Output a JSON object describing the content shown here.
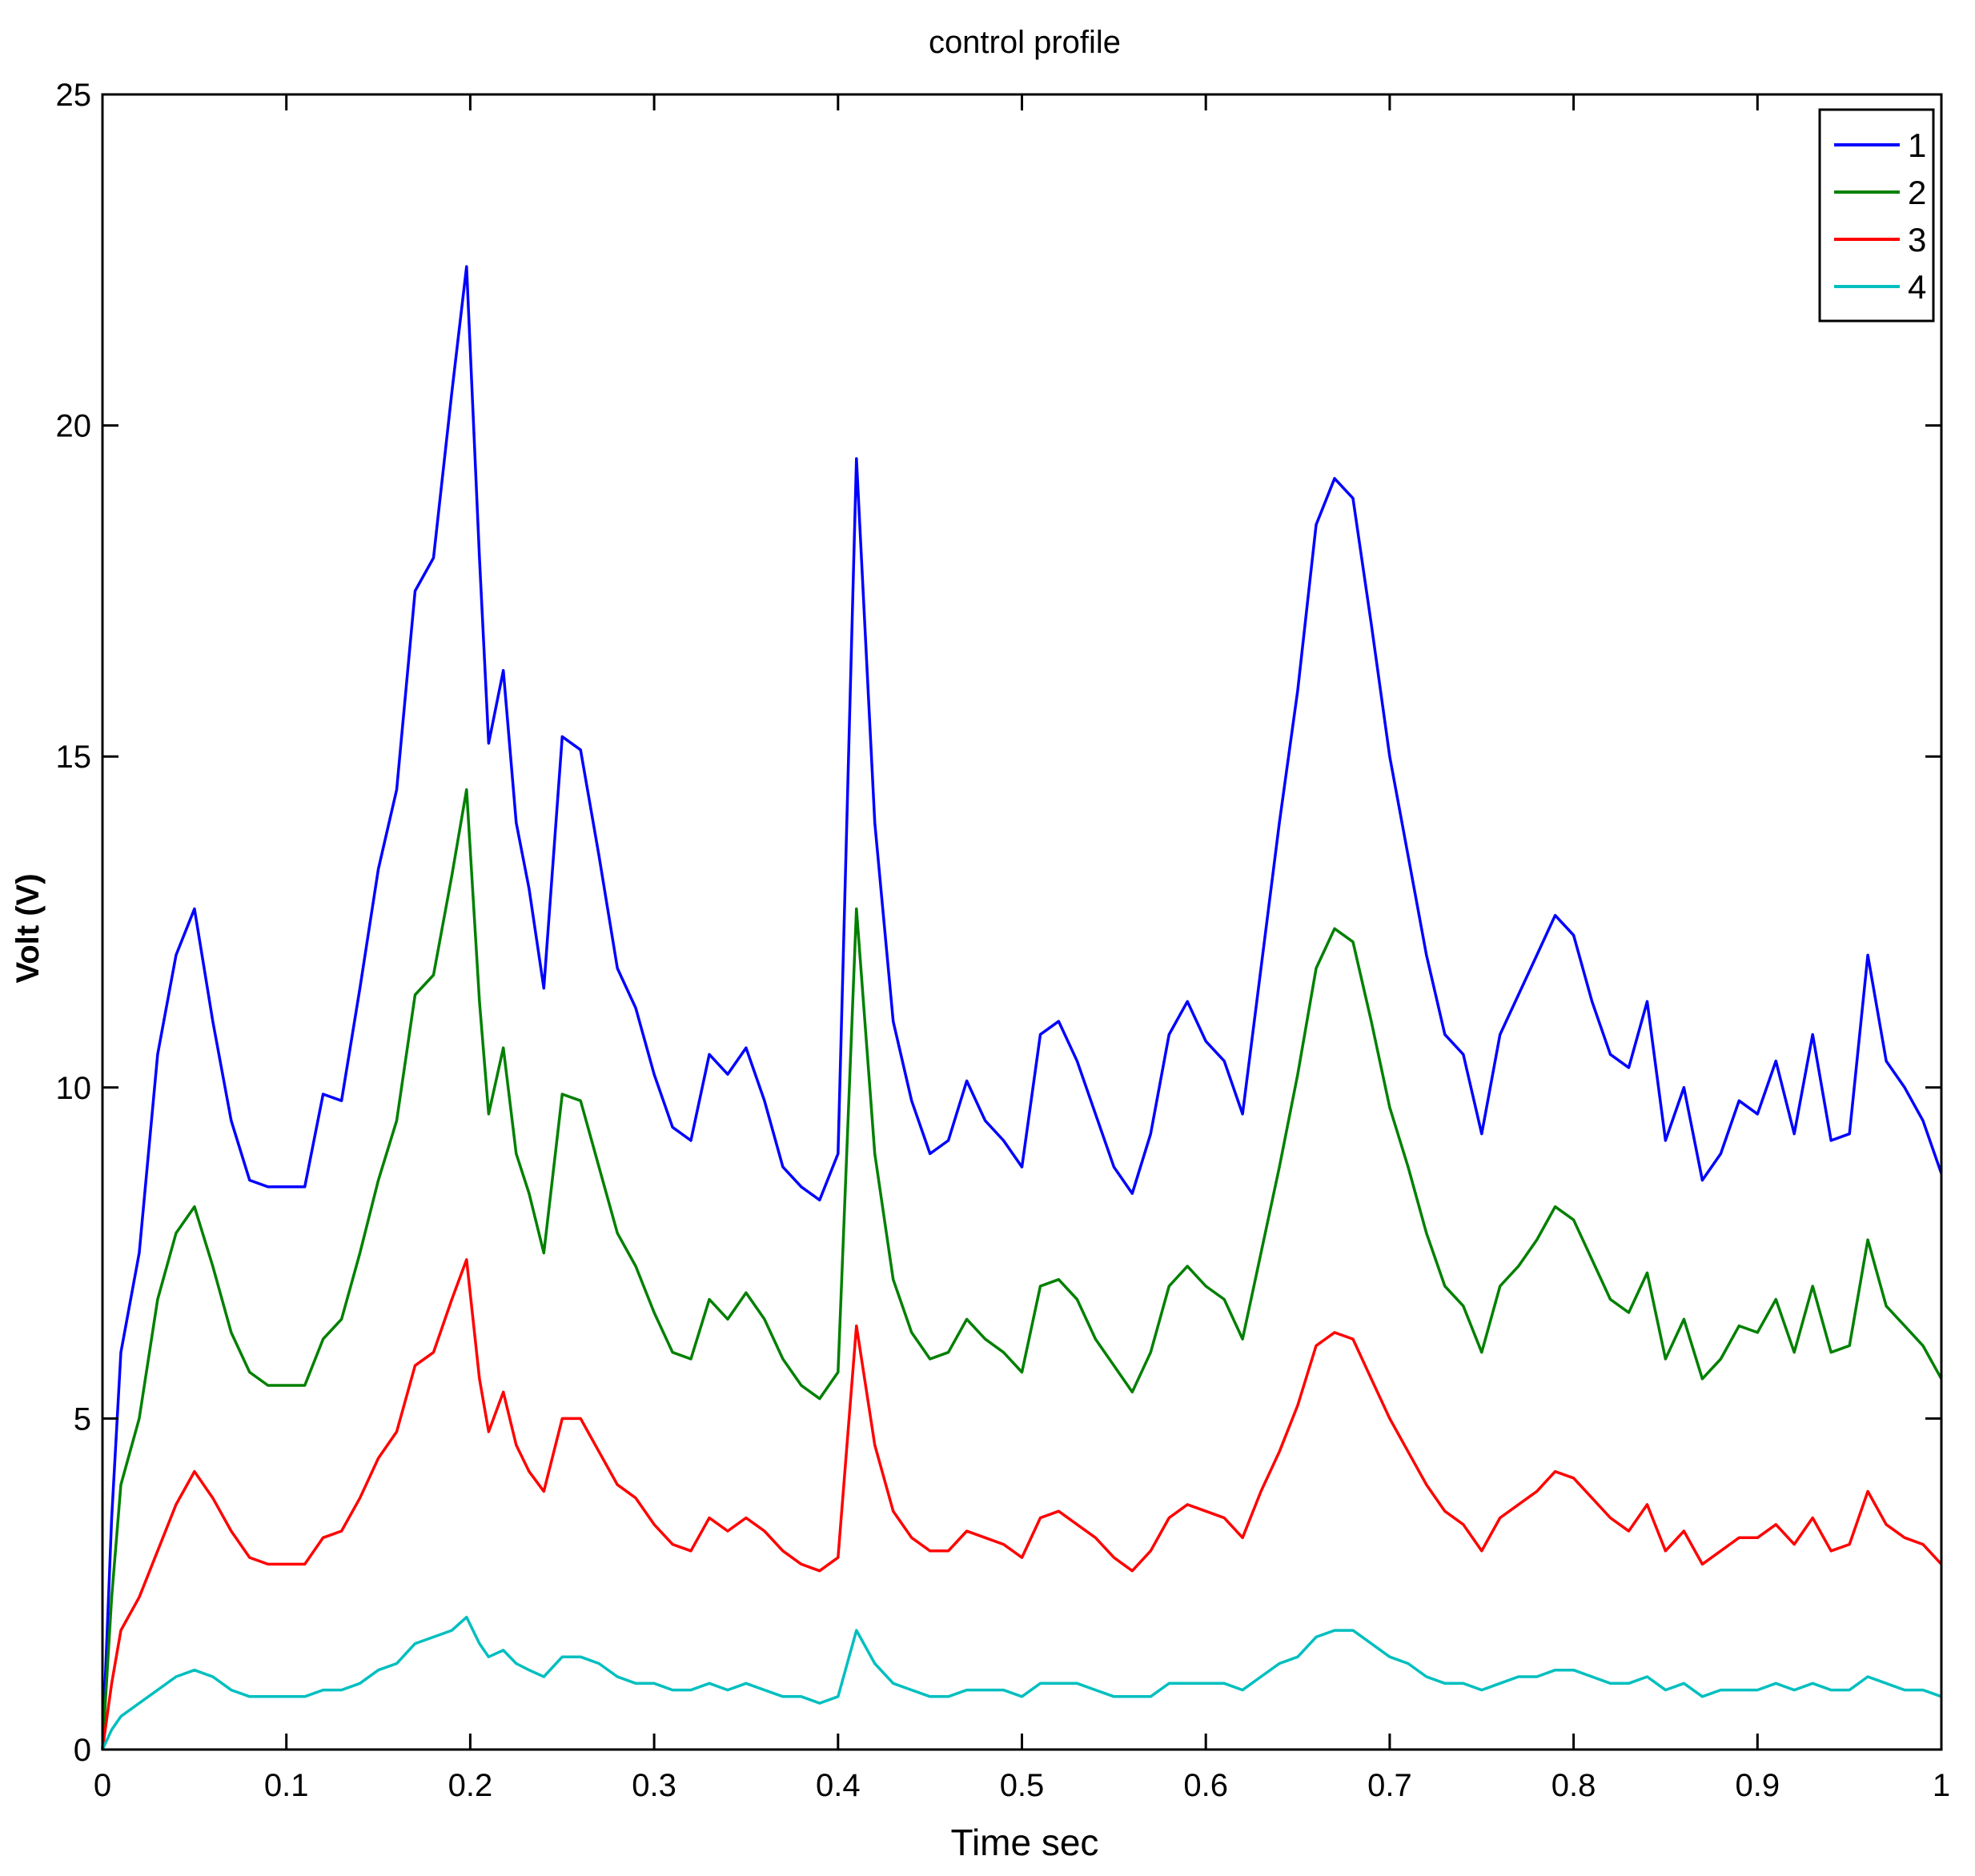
{
  "chart_data": {
    "type": "line",
    "title": "control profile",
    "xlabel": "Time sec",
    "ylabel": "Volt (V)",
    "xlim": [
      0,
      1
    ],
    "ylim": [
      0,
      25
    ],
    "xticks": [
      0,
      0.1,
      0.2,
      0.3,
      0.4,
      0.5,
      0.6,
      0.7,
      0.8,
      0.9,
      1
    ],
    "xtick_labels": [
      "0",
      "0.1",
      "0.2",
      "0.3",
      "0.4",
      "0.5",
      "0.6",
      "0.7",
      "0.8",
      "0.9",
      "1"
    ],
    "yticks": [
      0,
      5,
      10,
      15,
      20,
      25
    ],
    "ytick_labels": [
      "0",
      "5",
      "10",
      "15",
      "20",
      "25"
    ],
    "grid": false,
    "legend_position": "top-right",
    "x": [
      0,
      0.005,
      0.01,
      0.02,
      0.03,
      0.04,
      0.05,
      0.06,
      0.07,
      0.08,
      0.09,
      0.1,
      0.11,
      0.12,
      0.13,
      0.14,
      0.15,
      0.16,
      0.17,
      0.18,
      0.19,
      0.198,
      0.205,
      0.21,
      0.218,
      0.225,
      0.232,
      0.24,
      0.25,
      0.26,
      0.27,
      0.28,
      0.29,
      0.3,
      0.31,
      0.32,
      0.33,
      0.34,
      0.35,
      0.36,
      0.37,
      0.38,
      0.39,
      0.4,
      0.41,
      0.42,
      0.43,
      0.44,
      0.45,
      0.46,
      0.47,
      0.48,
      0.49,
      0.5,
      0.51,
      0.52,
      0.53,
      0.54,
      0.55,
      0.56,
      0.57,
      0.58,
      0.59,
      0.6,
      0.61,
      0.62,
      0.63,
      0.64,
      0.65,
      0.66,
      0.67,
      0.68,
      0.69,
      0.7,
      0.71,
      0.72,
      0.73,
      0.74,
      0.75,
      0.76,
      0.77,
      0.78,
      0.79,
      0.8,
      0.81,
      0.82,
      0.83,
      0.84,
      0.85,
      0.86,
      0.87,
      0.88,
      0.89,
      0.9,
      0.91,
      0.92,
      0.93,
      0.94,
      0.95,
      0.96,
      0.97,
      0.98,
      0.99,
      1.0
    ],
    "series": [
      {
        "name": "1",
        "color": "#0000ff",
        "values": [
          0,
          3.5,
          6.0,
          7.5,
          10.5,
          12.0,
          12.7,
          11.0,
          9.5,
          8.6,
          8.5,
          8.5,
          8.5,
          9.9,
          9.8,
          11.5,
          13.3,
          14.5,
          17.5,
          18.0,
          20.5,
          22.4,
          18.0,
          15.2,
          16.3,
          14.0,
          13.0,
          11.5,
          15.3,
          15.1,
          13.5,
          11.8,
          11.2,
          10.2,
          9.4,
          9.2,
          10.5,
          10.2,
          10.6,
          9.8,
          8.8,
          8.5,
          8.3,
          9.0,
          19.5,
          14.0,
          11.0,
          9.8,
          9.0,
          9.2,
          10.1,
          9.5,
          9.2,
          8.8,
          10.8,
          11.0,
          10.4,
          9.6,
          8.8,
          8.4,
          9.3,
          10.8,
          11.3,
          10.7,
          10.4,
          9.6,
          11.8,
          14.0,
          16.0,
          18.5,
          19.2,
          18.9,
          17.0,
          15.0,
          13.5,
          12.0,
          10.8,
          10.5,
          9.3,
          10.8,
          11.4,
          12.0,
          12.6,
          12.3,
          11.3,
          10.5,
          10.3,
          11.3,
          9.2,
          10.0,
          8.6,
          9.0,
          9.8,
          9.6,
          10.4,
          9.3,
          10.8,
          9.2,
          9.3,
          12.0,
          10.4,
          10.0,
          9.5,
          8.7
        ]
      },
      {
        "name": "2",
        "color": "#008000",
        "values": [
          0,
          2.3,
          4.0,
          5.0,
          6.8,
          7.8,
          8.2,
          7.3,
          6.3,
          5.7,
          5.5,
          5.5,
          5.5,
          6.2,
          6.5,
          7.5,
          8.6,
          9.5,
          11.4,
          11.7,
          13.2,
          14.5,
          11.3,
          9.6,
          10.6,
          9.0,
          8.4,
          7.5,
          9.9,
          9.8,
          8.8,
          7.8,
          7.3,
          6.6,
          6.0,
          5.9,
          6.8,
          6.5,
          6.9,
          6.5,
          5.9,
          5.5,
          5.3,
          5.7,
          12.7,
          9.0,
          7.1,
          6.3,
          5.9,
          6.0,
          6.5,
          6.2,
          6.0,
          5.7,
          7.0,
          7.1,
          6.8,
          6.2,
          5.8,
          5.4,
          6.0,
          7.0,
          7.3,
          7.0,
          6.8,
          6.2,
          7.5,
          8.8,
          10.2,
          11.8,
          12.4,
          12.2,
          11.0,
          9.7,
          8.8,
          7.8,
          7.0,
          6.7,
          6.0,
          7.0,
          7.3,
          7.7,
          8.2,
          8.0,
          7.4,
          6.8,
          6.6,
          7.2,
          5.9,
          6.5,
          5.6,
          5.9,
          6.4,
          6.3,
          6.8,
          6.0,
          7.0,
          6.0,
          6.1,
          7.7,
          6.7,
          6.4,
          6.1,
          5.6
        ]
      },
      {
        "name": "3",
        "color": "#ff0000",
        "values": [
          0,
          1.0,
          1.8,
          2.3,
          3.0,
          3.7,
          4.2,
          3.8,
          3.3,
          2.9,
          2.8,
          2.8,
          2.8,
          3.2,
          3.3,
          3.8,
          4.4,
          4.8,
          5.8,
          6.0,
          6.8,
          7.4,
          5.6,
          4.8,
          5.4,
          4.6,
          4.2,
          3.9,
          5.0,
          5.0,
          4.5,
          4.0,
          3.8,
          3.4,
          3.1,
          3.0,
          3.5,
          3.3,
          3.5,
          3.3,
          3.0,
          2.8,
          2.7,
          2.9,
          6.4,
          4.6,
          3.6,
          3.2,
          3.0,
          3.0,
          3.3,
          3.2,
          3.1,
          2.9,
          3.5,
          3.6,
          3.4,
          3.2,
          2.9,
          2.7,
          3.0,
          3.5,
          3.7,
          3.6,
          3.5,
          3.2,
          3.9,
          4.5,
          5.2,
          6.1,
          6.3,
          6.2,
          5.6,
          5.0,
          4.5,
          4.0,
          3.6,
          3.4,
          3.0,
          3.5,
          3.7,
          3.9,
          4.2,
          4.1,
          3.8,
          3.5,
          3.3,
          3.7,
          3.0,
          3.3,
          2.8,
          3.0,
          3.2,
          3.2,
          3.4,
          3.1,
          3.5,
          3.0,
          3.1,
          3.9,
          3.4,
          3.2,
          3.1,
          2.8
        ]
      },
      {
        "name": "4",
        "color": "#00bfbf",
        "values": [
          0,
          0.3,
          0.5,
          0.7,
          0.9,
          1.1,
          1.2,
          1.1,
          0.9,
          0.8,
          0.8,
          0.8,
          0.8,
          0.9,
          0.9,
          1.0,
          1.2,
          1.3,
          1.6,
          1.7,
          1.8,
          2.0,
          1.6,
          1.4,
          1.5,
          1.3,
          1.2,
          1.1,
          1.4,
          1.4,
          1.3,
          1.1,
          1.0,
          1.0,
          0.9,
          0.9,
          1.0,
          0.9,
          1.0,
          0.9,
          0.8,
          0.8,
          0.7,
          0.8,
          1.8,
          1.3,
          1.0,
          0.9,
          0.8,
          0.8,
          0.9,
          0.9,
          0.9,
          0.8,
          1.0,
          1.0,
          1.0,
          0.9,
          0.8,
          0.8,
          0.8,
          1.0,
          1.0,
          1.0,
          1.0,
          0.9,
          1.1,
          1.3,
          1.4,
          1.7,
          1.8,
          1.8,
          1.6,
          1.4,
          1.3,
          1.1,
          1.0,
          1.0,
          0.9,
          1.0,
          1.1,
          1.1,
          1.2,
          1.2,
          1.1,
          1.0,
          1.0,
          1.1,
          0.9,
          1.0,
          0.8,
          0.9,
          0.9,
          0.9,
          1.0,
          0.9,
          1.0,
          0.9,
          0.9,
          1.1,
          1.0,
          0.9,
          0.9,
          0.8
        ]
      }
    ]
  }
}
